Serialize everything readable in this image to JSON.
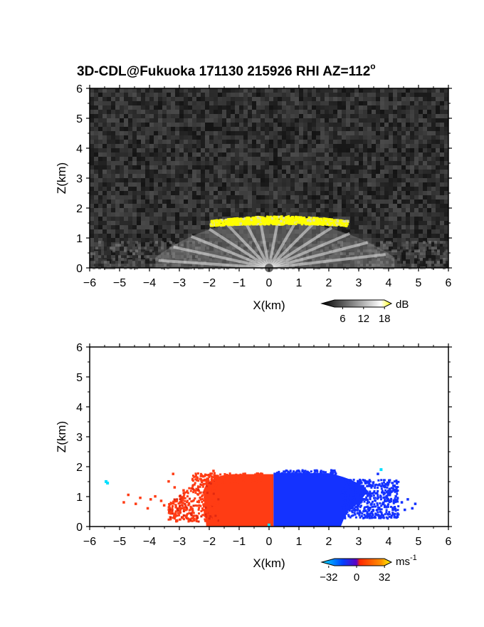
{
  "title": "3D-CDL@Fukuoka 171130 215926 RHI AZ=112",
  "title_sup": "o",
  "chart_data": [
    {
      "type": "heatmap",
      "panel": "top",
      "variable": "intensity",
      "xlabel": "X(km)",
      "ylabel": "Z(km)",
      "xlim": [
        -6,
        6
      ],
      "ylim": [
        0,
        6
      ],
      "xticks": [
        "-6",
        "-5",
        "-4",
        "-3",
        "-2",
        "-1",
        "0",
        "1",
        "2",
        "3",
        "4",
        "5",
        "6"
      ],
      "yticks": [
        "0",
        "1",
        "2",
        "3",
        "4",
        "5",
        "6"
      ],
      "colorbar": {
        "unit": "dB",
        "ticks": [
          "6",
          "12",
          "18"
        ],
        "range": [
          0,
          20
        ],
        "colors": [
          "#000000",
          "#ffffff",
          "#ffff00"
        ]
      },
      "features": [
        {
          "name": "strong layer",
          "x_range": [
            -2.0,
            2.6
          ],
          "z_range": [
            1.45,
            1.85
          ],
          "color": "#ffff00"
        },
        {
          "name": "radial beam fan",
          "x_range": [
            -3.8,
            4.2
          ],
          "z_range": [
            0,
            1.6
          ]
        }
      ],
      "grid": false
    },
    {
      "type": "heatmap",
      "panel": "bottom",
      "variable": "radial velocity",
      "xlabel": "X(km)",
      "ylabel": "Z(km)",
      "xlim": [
        -6,
        6
      ],
      "ylim": [
        0,
        6
      ],
      "xticks": [
        "-6",
        "-5",
        "-4",
        "-3",
        "-2",
        "-1",
        "0",
        "1",
        "2",
        "3",
        "4",
        "5",
        "6"
      ],
      "yticks": [
        "0",
        "1",
        "2",
        "3",
        "4",
        "5",
        "6"
      ],
      "colorbar": {
        "unit": "ms",
        "unit_sup": "-1",
        "ticks": [
          "-32",
          "0",
          "32"
        ],
        "range": [
          -40,
          40
        ],
        "colors": [
          "#00e0ff",
          "#0040ff",
          "#ff2a00",
          "#ffff00"
        ]
      },
      "features": [
        {
          "name": "receding (red)",
          "x_range": [
            -3.2,
            0.2
          ],
          "z_range": [
            0,
            1.85
          ],
          "color": "#ff3c14"
        },
        {
          "name": "approaching (blue)",
          "x_range": [
            0.15,
            4.9
          ],
          "z_range": [
            0,
            1.9
          ],
          "color": "#1432ff"
        }
      ],
      "grid": false
    }
  ]
}
